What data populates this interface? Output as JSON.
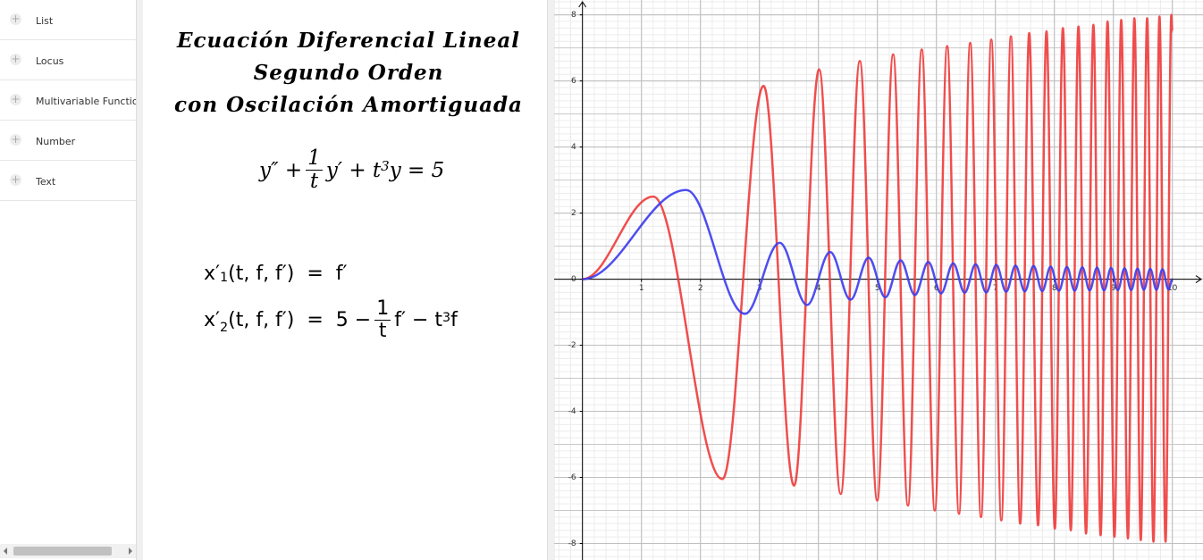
{
  "sidebar": {
    "items": [
      "List",
      "Locus",
      "Multivariable Function",
      "Number",
      "Text"
    ]
  },
  "panel": {
    "title": [
      "Ecuación Diferencial Lineal",
      "Segundo Orden",
      "con Oscilación Amortiguada"
    ],
    "equation": {
      "left": "y″ +",
      "numerator": "1",
      "denominator": "t",
      "right": "y′ + t",
      "power": "3",
      "end": "y = 5"
    },
    "system": [
      {
        "name": "x′",
        "index": "1",
        "args": "(t, f, f′)  =  f′"
      },
      {
        "name": "x′",
        "index": "2",
        "args": "(t, f, f′)  =  5 −",
        "numerator": "1",
        "denominator": "t",
        "rest": "f′ − t",
        "power": "3",
        "end": "f"
      }
    ]
  },
  "chart_data": {
    "type": "line",
    "xlim": [
      -0.48,
      10.52
    ],
    "ylim": [
      -8.5,
      8.45
    ],
    "xticks": [
      1,
      2,
      3,
      4,
      5,
      6,
      7,
      8,
      9,
      10
    ],
    "yticks": [
      -8,
      -6,
      -4,
      -2,
      0,
      2,
      4,
      6,
      8
    ],
    "grid": true,
    "series": [
      {
        "color": "#ee3b3b",
        "x": [
          0,
          1.2,
          2.373,
          3.071,
          3.588,
          4.012,
          4.378,
          4.702,
          4.997,
          5.267,
          5.518,
          5.752,
          5.973,
          6.183,
          6.383,
          6.574,
          6.757,
          6.931,
          7.101,
          7.264,
          7.421,
          7.574,
          7.724,
          7.867,
          8.008,
          8.145,
          8.279,
          8.409,
          8.537,
          8.662,
          8.784,
          8.902,
          9.019,
          9.134,
          9.247,
          9.357,
          9.465,
          9.573,
          9.68,
          9.782,
          9.885,
          9.984,
          10
        ],
        "values": [
          0,
          2.5,
          -6.05,
          5.85,
          -6.25,
          6.35,
          -6.5,
          6.6,
          -6.7,
          6.8,
          -6.85,
          6.95,
          -7.0,
          7.05,
          -7.1,
          7.15,
          -7.2,
          7.25,
          -7.3,
          7.35,
          -7.4,
          7.45,
          -7.45,
          7.5,
          -7.55,
          7.6,
          -7.6,
          7.65,
          -7.7,
          7.7,
          -7.75,
          7.8,
          -7.8,
          7.85,
          -7.85,
          7.9,
          -7.9,
          7.9,
          -7.95,
          7.95,
          -7.95,
          8.0,
          7.5
        ]
      },
      {
        "color": "#3b3bee",
        "x": [
          0,
          1.76,
          2.755,
          3.344,
          3.808,
          4.2,
          4.545,
          4.852,
          5.135,
          5.394,
          5.636,
          5.864,
          6.079,
          6.285,
          6.48,
          6.666,
          6.846,
          7.016,
          7.183,
          7.342,
          7.499,
          7.648,
          7.795,
          7.937,
          8.077,
          8.213,
          8.344,
          8.474,
          8.599,
          8.724,
          8.843,
          8.962,
          9.076,
          9.19,
          9.302,
          9.41,
          9.517,
          9.626,
          9.731,
          9.833,
          9.935,
          10
        ],
        "values": [
          0,
          2.7,
          -1.05,
          1.1,
          -0.78,
          0.82,
          -0.62,
          0.65,
          -0.55,
          0.57,
          -0.48,
          0.52,
          -0.43,
          0.48,
          -0.41,
          0.45,
          -0.4,
          0.43,
          -0.38,
          0.41,
          -0.37,
          0.4,
          -0.36,
          0.38,
          -0.35,
          0.37,
          -0.35,
          0.36,
          -0.34,
          0.35,
          -0.34,
          0.34,
          -0.33,
          0.33,
          -0.33,
          0.32,
          -0.32,
          0.31,
          -0.32,
          0.3,
          -0.31,
          0
        ]
      }
    ]
  }
}
